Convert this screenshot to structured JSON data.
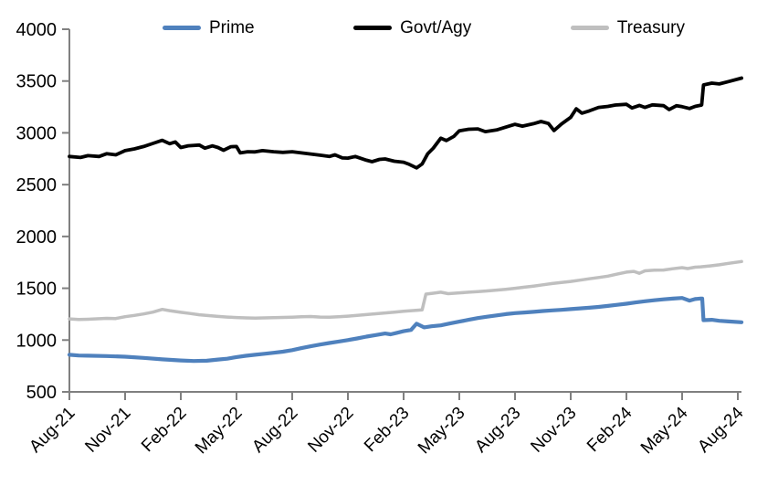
{
  "chart_data": {
    "type": "line",
    "title": "",
    "background": "#FFFFFF",
    "axis_color": "#808080",
    "text_color": "#000000",
    "grid": false,
    "legend_position": "top",
    "x_axis": {
      "unit": "months since Aug-2021",
      "range_months": [
        0,
        36
      ],
      "months_per_tick": 3,
      "tick_labels": [
        "Aug-21",
        "Nov-21",
        "Feb-22",
        "May-22",
        "Aug-22",
        "Nov-22",
        "Feb-23",
        "May-23",
        "Aug-23",
        "Nov-23",
        "Feb-24",
        "May-24",
        "Aug-24"
      ],
      "label_rotation_deg": -45
    },
    "y_axis": {
      "range": [
        500,
        4000
      ],
      "ticks": [
        500,
        1000,
        1500,
        2000,
        2500,
        3000,
        3500,
        4000
      ]
    },
    "series": [
      {
        "name": "Prime",
        "color": "#4F81BD",
        "stroke_width": 4.2,
        "points": [
          [
            0,
            858
          ],
          [
            0.5,
            851
          ],
          [
            1,
            849
          ],
          [
            2,
            846
          ],
          [
            3,
            839
          ],
          [
            4,
            828
          ],
          [
            5,
            814
          ],
          [
            6,
            803
          ],
          [
            6.7,
            798
          ],
          [
            7.4,
            801
          ],
          [
            8,
            812
          ],
          [
            8.5,
            820
          ],
          [
            9,
            836
          ],
          [
            9.5,
            848
          ],
          [
            10,
            858
          ],
          [
            10.5,
            868
          ],
          [
            11,
            877
          ],
          [
            11.5,
            888
          ],
          [
            12,
            903
          ],
          [
            12.5,
            922
          ],
          [
            13,
            940
          ],
          [
            13.5,
            957
          ],
          [
            14,
            972
          ],
          [
            14.5,
            986
          ],
          [
            15,
            1000
          ],
          [
            15.5,
            1016
          ],
          [
            16,
            1033
          ],
          [
            16.5,
            1048
          ],
          [
            17,
            1063
          ],
          [
            17.3,
            1055
          ],
          [
            17.6,
            1068
          ],
          [
            18,
            1085
          ],
          [
            18.4,
            1098
          ],
          [
            18.7,
            1158
          ],
          [
            19.1,
            1122
          ],
          [
            19.5,
            1133
          ],
          [
            20,
            1142
          ],
          [
            20.5,
            1160
          ],
          [
            21,
            1178
          ],
          [
            21.5,
            1196
          ],
          [
            22,
            1212
          ],
          [
            22.5,
            1226
          ],
          [
            23,
            1238
          ],
          [
            23.5,
            1250
          ],
          [
            24,
            1260
          ],
          [
            24.5,
            1266
          ],
          [
            25,
            1272
          ],
          [
            25.5,
            1280
          ],
          [
            26,
            1286
          ],
          [
            26.5,
            1292
          ],
          [
            27,
            1299
          ],
          [
            27.5,
            1306
          ],
          [
            28,
            1312
          ],
          [
            28.5,
            1320
          ],
          [
            29,
            1330
          ],
          [
            29.5,
            1340
          ],
          [
            30,
            1351
          ],
          [
            30.5,
            1363
          ],
          [
            31,
            1375
          ],
          [
            31.5,
            1384
          ],
          [
            32,
            1393
          ],
          [
            32.5,
            1400
          ],
          [
            33,
            1406
          ],
          [
            33.4,
            1381
          ],
          [
            33.7,
            1396
          ],
          [
            34,
            1401
          ],
          [
            34.08,
            1401
          ],
          [
            34.15,
            1192
          ],
          [
            34.6,
            1196
          ],
          [
            35,
            1186
          ],
          [
            35.5,
            1180
          ],
          [
            36.2,
            1172
          ]
        ]
      },
      {
        "name": "Govt/Agy",
        "color": "#000000",
        "stroke_width": 3.8,
        "points": [
          [
            0,
            2772
          ],
          [
            0.6,
            2762
          ],
          [
            1,
            2780
          ],
          [
            1.6,
            2772
          ],
          [
            2,
            2798
          ],
          [
            2.5,
            2788
          ],
          [
            3,
            2828
          ],
          [
            3.5,
            2845
          ],
          [
            4,
            2868
          ],
          [
            4.5,
            2898
          ],
          [
            5,
            2928
          ],
          [
            5.4,
            2895
          ],
          [
            5.7,
            2912
          ],
          [
            6,
            2858
          ],
          [
            6.4,
            2875
          ],
          [
            7,
            2882
          ],
          [
            7.3,
            2852
          ],
          [
            7.7,
            2874
          ],
          [
            8,
            2858
          ],
          [
            8.3,
            2832
          ],
          [
            8.7,
            2866
          ],
          [
            9,
            2868
          ],
          [
            9.2,
            2806
          ],
          [
            9.6,
            2818
          ],
          [
            10,
            2816
          ],
          [
            10.4,
            2828
          ],
          [
            11,
            2818
          ],
          [
            11.5,
            2812
          ],
          [
            12,
            2818
          ],
          [
            12.5,
            2806
          ],
          [
            13,
            2796
          ],
          [
            13.5,
            2784
          ],
          [
            14,
            2772
          ],
          [
            14.3,
            2788
          ],
          [
            14.7,
            2758
          ],
          [
            15,
            2756
          ],
          [
            15.4,
            2772
          ],
          [
            16,
            2736
          ],
          [
            16.3,
            2722
          ],
          [
            16.7,
            2744
          ],
          [
            17,
            2748
          ],
          [
            17.5,
            2726
          ],
          [
            18,
            2716
          ],
          [
            18.3,
            2696
          ],
          [
            18.7,
            2662
          ],
          [
            19,
            2700
          ],
          [
            19.3,
            2798
          ],
          [
            19.6,
            2852
          ],
          [
            20,
            2948
          ],
          [
            20.3,
            2925
          ],
          [
            20.7,
            2965
          ],
          [
            21,
            3020
          ],
          [
            21.5,
            3035
          ],
          [
            22,
            3038
          ],
          [
            22.4,
            3012
          ],
          [
            23,
            3028
          ],
          [
            23.5,
            3055
          ],
          [
            24,
            3082
          ],
          [
            24.4,
            3065
          ],
          [
            25,
            3088
          ],
          [
            25.4,
            3110
          ],
          [
            25.8,
            3090
          ],
          [
            26.1,
            3022
          ],
          [
            26.5,
            3085
          ],
          [
            27,
            3150
          ],
          [
            27.3,
            3232
          ],
          [
            27.6,
            3190
          ],
          [
            28,
            3212
          ],
          [
            28.5,
            3245
          ],
          [
            29,
            3255
          ],
          [
            29.4,
            3268
          ],
          [
            30,
            3275
          ],
          [
            30.3,
            3240
          ],
          [
            30.7,
            3265
          ],
          [
            31,
            3245
          ],
          [
            31.4,
            3270
          ],
          [
            32,
            3262
          ],
          [
            32.3,
            3225
          ],
          [
            32.7,
            3262
          ],
          [
            33,
            3252
          ],
          [
            33.4,
            3235
          ],
          [
            33.7,
            3255
          ],
          [
            34.05,
            3268
          ],
          [
            34.15,
            3462
          ],
          [
            34.6,
            3480
          ],
          [
            35,
            3472
          ],
          [
            35.5,
            3495
          ],
          [
            36.2,
            3528
          ]
        ]
      },
      {
        "name": "Treasury",
        "color": "#BFBFBF",
        "stroke_width": 3.5,
        "points": [
          [
            0,
            1204
          ],
          [
            0.5,
            1198
          ],
          [
            1,
            1201
          ],
          [
            2,
            1210
          ],
          [
            2.5,
            1208
          ],
          [
            3,
            1226
          ],
          [
            3.5,
            1238
          ],
          [
            4,
            1252
          ],
          [
            4.5,
            1270
          ],
          [
            5,
            1296
          ],
          [
            5.4,
            1284
          ],
          [
            6,
            1268
          ],
          [
            6.5,
            1256
          ],
          [
            7,
            1244
          ],
          [
            7.5,
            1236
          ],
          [
            8,
            1228
          ],
          [
            8.5,
            1222
          ],
          [
            9,
            1218
          ],
          [
            9.5,
            1214
          ],
          [
            10,
            1212
          ],
          [
            11,
            1216
          ],
          [
            12,
            1221
          ],
          [
            12.5,
            1225
          ],
          [
            13,
            1227
          ],
          [
            13.5,
            1222
          ],
          [
            14,
            1221
          ],
          [
            14.5,
            1226
          ],
          [
            15,
            1231
          ],
          [
            15.5,
            1238
          ],
          [
            16,
            1246
          ],
          [
            16.5,
            1254
          ],
          [
            17,
            1262
          ],
          [
            17.5,
            1270
          ],
          [
            18,
            1278
          ],
          [
            18.5,
            1285
          ],
          [
            19,
            1292
          ],
          [
            19.2,
            1443
          ],
          [
            19.6,
            1452
          ],
          [
            20,
            1462
          ],
          [
            20.4,
            1448
          ],
          [
            21,
            1456
          ],
          [
            21.5,
            1462
          ],
          [
            22,
            1468
          ],
          [
            22.5,
            1474
          ],
          [
            23,
            1482
          ],
          [
            23.5,
            1490
          ],
          [
            24,
            1500
          ],
          [
            24.5,
            1510
          ],
          [
            25,
            1521
          ],
          [
            25.5,
            1533
          ],
          [
            26,
            1546
          ],
          [
            26.5,
            1556
          ],
          [
            27,
            1566
          ],
          [
            27.5,
            1578
          ],
          [
            28,
            1591
          ],
          [
            28.5,
            1604
          ],
          [
            29,
            1617
          ],
          [
            29.5,
            1636
          ],
          [
            30,
            1656
          ],
          [
            30.4,
            1663
          ],
          [
            30.7,
            1644
          ],
          [
            31,
            1668
          ],
          [
            31.5,
            1675
          ],
          [
            32,
            1676
          ],
          [
            32.5,
            1688
          ],
          [
            33,
            1699
          ],
          [
            33.3,
            1690
          ],
          [
            33.7,
            1703
          ],
          [
            34,
            1707
          ],
          [
            34.5,
            1716
          ],
          [
            35,
            1726
          ],
          [
            35.5,
            1740
          ],
          [
            36.2,
            1758
          ]
        ]
      }
    ]
  }
}
